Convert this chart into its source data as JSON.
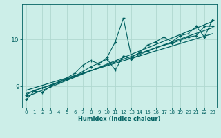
{
  "xlabel": "Humidex (Indice chaleur)",
  "bg_color": "#cceee8",
  "line_color": "#006060",
  "grid_color": "#b0d8d0",
  "x_zigzag": [
    0,
    1,
    2,
    3,
    4,
    5,
    6,
    7,
    8,
    9,
    10,
    11,
    12,
    13,
    14,
    15,
    16,
    17,
    18,
    19,
    20,
    21,
    22,
    23
  ],
  "y_zigzag": [
    8.72,
    8.9,
    8.88,
    9.0,
    9.1,
    9.18,
    9.28,
    9.45,
    9.55,
    9.48,
    9.62,
    9.95,
    10.45,
    9.62,
    9.72,
    9.88,
    9.95,
    10.05,
    9.95,
    10.08,
    10.12,
    10.28,
    10.05,
    10.42
  ],
  "x_smooth": [
    0,
    1,
    2,
    3,
    4,
    5,
    6,
    7,
    8,
    9,
    10,
    11,
    12,
    13,
    14,
    15,
    16,
    17,
    18,
    19,
    20,
    21,
    22,
    23
  ],
  "y_smooth": [
    8.82,
    8.92,
    8.97,
    9.02,
    9.08,
    9.15,
    9.22,
    9.32,
    9.42,
    9.5,
    9.58,
    9.35,
    9.65,
    9.58,
    9.68,
    9.75,
    9.82,
    9.88,
    9.92,
    9.98,
    10.05,
    10.08,
    10.28,
    10.28
  ],
  "trend_x": [
    0,
    23
  ],
  "trend1_y": [
    8.78,
    10.38
  ],
  "trend2_y": [
    8.85,
    10.25
  ],
  "trend3_y": [
    8.92,
    10.12
  ],
  "xlim": [
    -0.5,
    23.5
  ],
  "ylim": [
    8.55,
    10.75
  ],
  "yticks": [
    9,
    10
  ],
  "xticks": [
    0,
    1,
    2,
    3,
    4,
    5,
    6,
    7,
    8,
    9,
    10,
    11,
    12,
    13,
    14,
    15,
    16,
    17,
    18,
    19,
    20,
    21,
    22,
    23
  ]
}
